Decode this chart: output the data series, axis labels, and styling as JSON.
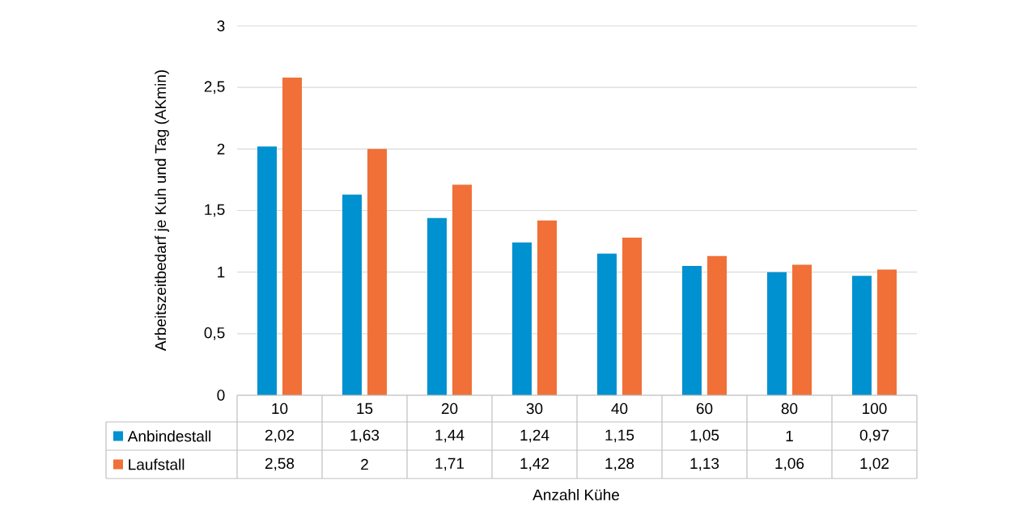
{
  "chart_data": {
    "type": "bar",
    "xlabel": "Anzahl Kühe",
    "ylabel": "Arbeitszeitbedarf je  Kuh und Tag (AKmin)",
    "categories": [
      "10",
      "15",
      "20",
      "30",
      "40",
      "60",
      "80",
      "100"
    ],
    "series": [
      {
        "name": "Anbindestall",
        "color": "#0091d0",
        "values": [
          2.02,
          1.63,
          1.44,
          1.24,
          1.15,
          1.05,
          1,
          0.97
        ],
        "value_labels": [
          "2,02",
          "1,63",
          "1,44",
          "1,24",
          "1,15",
          "1,05",
          "1",
          "0,97"
        ]
      },
      {
        "name": "Laufstall",
        "color": "#f07038",
        "values": [
          2.58,
          2,
          1.71,
          1.42,
          1.28,
          1.13,
          1.06,
          1.02
        ],
        "value_labels": [
          "2,58",
          "2",
          "1,71",
          "1,42",
          "1,28",
          "1,13",
          "1,06",
          "1,02"
        ]
      }
    ],
    "ylim": [
      0,
      3
    ],
    "yticks": [
      0,
      {
        "value": 0.5,
        "label": "0,5"
      },
      1,
      {
        "value": 1.5,
        "label": "1,5"
      },
      2,
      {
        "value": 2.5,
        "label": "2,5"
      },
      3
    ],
    "grid": "y",
    "legend": "bottom"
  }
}
